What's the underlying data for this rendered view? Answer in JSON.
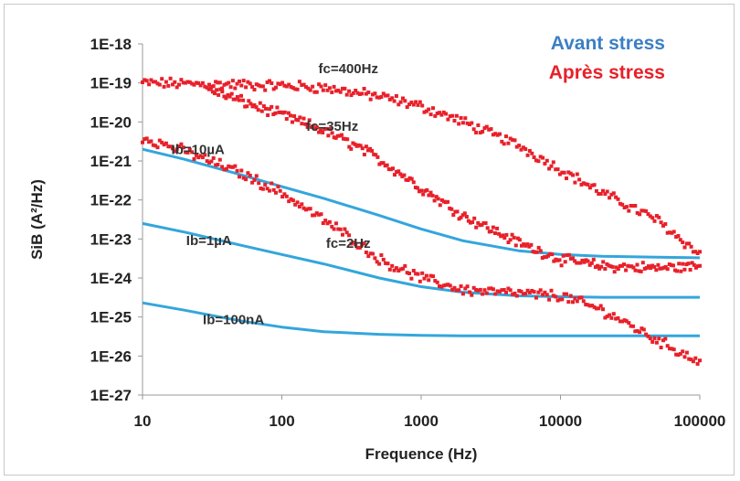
{
  "chart_data": {
    "type": "scatter",
    "title": "",
    "xlabel": "Frequence (Hz)",
    "ylabel": "SiB (A²/Hz)",
    "x_scale": "log",
    "y_scale": "log",
    "xlim": [
      10,
      100000
    ],
    "ylim": [
      1e-27,
      1e-18
    ],
    "x_ticks": [
      "10",
      "100",
      "1000",
      "10000",
      "100000"
    ],
    "x_tick_values": [
      10,
      100,
      1000,
      10000,
      100000
    ],
    "y_ticks": [
      "1E-18",
      "1E-19",
      "1E-20",
      "1E-21",
      "1E-22",
      "1E-23",
      "1E-24",
      "1E-25",
      "1E-26",
      "1E-27"
    ],
    "y_tick_values": [
      1e-18,
      1e-19,
      1e-20,
      1e-21,
      1e-22,
      1e-23,
      1e-24,
      1e-25,
      1e-26,
      1e-27
    ],
    "grid": false,
    "legend_position": "top-right",
    "legend": [
      {
        "label": "Avant stress",
        "color": "#3b7fc4"
      },
      {
        "label": "Après stress",
        "color": "#e8202a"
      }
    ],
    "series": [
      {
        "legend_index": 0,
        "style": "line",
        "color": "#33a6dc",
        "x": [
          10,
          20,
          50,
          100,
          200,
          500,
          1000,
          2000,
          5000,
          10000,
          20000,
          50000,
          100000
        ],
        "y": [
          2e-21,
          1.1e-21,
          4.5e-22,
          2.2e-22,
          1.1e-22,
          4e-23,
          1.8e-23,
          9e-24,
          5e-24,
          4e-24,
          3.6e-24,
          3.4e-24,
          3.3e-24
        ]
      },
      {
        "legend_index": 0,
        "style": "line",
        "color": "#33a6dc",
        "x": [
          10,
          20,
          50,
          100,
          200,
          500,
          1000,
          2000,
          5000,
          10000,
          20000,
          50000,
          100000
        ],
        "y": [
          2.5e-23,
          1.5e-23,
          7e-24,
          4e-24,
          2.3e-24,
          1e-24,
          6e-25,
          4.3e-25,
          3.5e-25,
          3.3e-25,
          3.2e-25,
          3.2e-25,
          3.2e-25
        ]
      },
      {
        "legend_index": 0,
        "style": "line",
        "color": "#33a6dc",
        "x": [
          10,
          20,
          50,
          100,
          200,
          500,
          1000,
          2000,
          5000,
          10000,
          100000
        ],
        "y": [
          2.3e-25,
          1.5e-25,
          8e-26,
          5.5e-26,
          4.2e-26,
          3.6e-26,
          3.4e-26,
          3.3e-26,
          3.3e-26,
          3.3e-26,
          3.3e-26
        ]
      },
      {
        "legend_index": 1,
        "style": "markers",
        "color": "#e8202a",
        "x": [
          10,
          20,
          50,
          100,
          150,
          200,
          300,
          500,
          1000,
          2000,
          5000,
          10000,
          20000,
          50000,
          100000
        ],
        "y": [
          1e-19,
          9.5e-20,
          9e-20,
          8.5e-20,
          8e-20,
          7.5e-20,
          6e-20,
          4.5e-20,
          2.5e-20,
          1e-20,
          2.5e-21,
          6e-22,
          1.5e-22,
          3e-23,
          4e-24
        ]
      },
      {
        "legend_index": 1,
        "style": "markers",
        "color": "#e8202a",
        "x": [
          30,
          50,
          100,
          200,
          400,
          700,
          1000,
          2000,
          5000,
          10000,
          20000,
          50000,
          100000
        ],
        "y": [
          7e-20,
          3.5e-20,
          1.5e-20,
          6e-21,
          1.8e-21,
          5e-22,
          2e-22,
          4e-23,
          8e-24,
          3e-24,
          2e-24,
          1.8e-24,
          2e-24
        ]
      },
      {
        "legend_index": 1,
        "style": "markers",
        "color": "#e8202a",
        "x": [
          10,
          20,
          50,
          100,
          200,
          300,
          500,
          1000,
          2000,
          5000,
          10000,
          20000,
          50000,
          100000
        ],
        "y": [
          4e-21,
          1.8e-21,
          5e-22,
          1.5e-22,
          3e-23,
          1.2e-23,
          3e-24,
          1e-24,
          5e-25,
          4e-25,
          3.5e-25,
          1.5e-25,
          2.5e-26,
          7e-27
        ]
      }
    ],
    "annotations": [
      {
        "text": "fc=400Hz",
        "x": 300,
        "y": 1.8e-19
      },
      {
        "text": "fc=35Hz",
        "x": 230,
        "y": 6e-21
      },
      {
        "text": "Ib=10µA",
        "x": 25,
        "y": 1.5e-21
      },
      {
        "text": "Ib=1µA",
        "x": 30,
        "y": 7e-24
      },
      {
        "text": "fc=2Hz",
        "x": 300,
        "y": 6e-24
      },
      {
        "text": "Ib=100nA",
        "x": 45,
        "y": 6.5e-26
      }
    ]
  }
}
